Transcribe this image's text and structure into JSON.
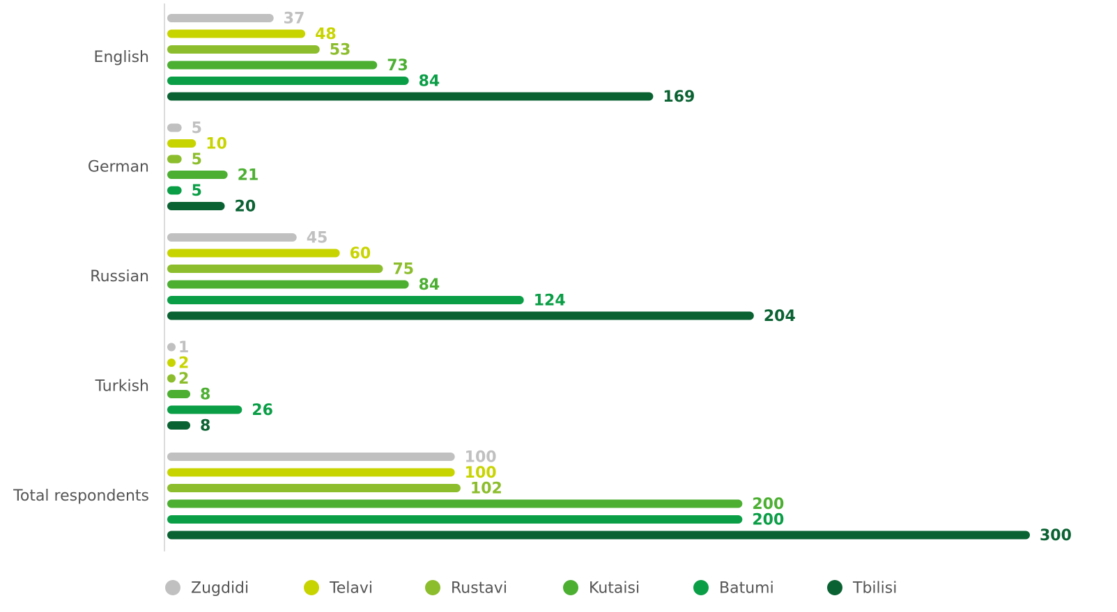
{
  "chart_data": {
    "type": "bar",
    "orientation": "horizontal",
    "categories": [
      "English",
      "German",
      "Russian",
      "Turkish",
      "Total respondents"
    ],
    "series": [
      {
        "name": "Zugdidi",
        "color": "#c0c0c0",
        "values": [
          37,
          5,
          45,
          1,
          100
        ]
      },
      {
        "name": "Telavi",
        "color": "#c8d400",
        "values": [
          48,
          10,
          60,
          2,
          100
        ]
      },
      {
        "name": "Rustavi",
        "color": "#8cbd2c",
        "values": [
          53,
          5,
          75,
          2,
          102
        ]
      },
      {
        "name": "Kutaisi",
        "color": "#4caf32",
        "values": [
          73,
          21,
          84,
          8,
          200
        ]
      },
      {
        "name": "Batumi",
        "color": "#0a9e46",
        "values": [
          84,
          5,
          124,
          26,
          200
        ]
      },
      {
        "name": "Tbilisi",
        "color": "#0a6232",
        "values": [
          169,
          20,
          204,
          8,
          300
        ]
      }
    ],
    "xlim": [
      0,
      300
    ],
    "grid": false,
    "legend_position": "bottom",
    "data_labels": true
  }
}
